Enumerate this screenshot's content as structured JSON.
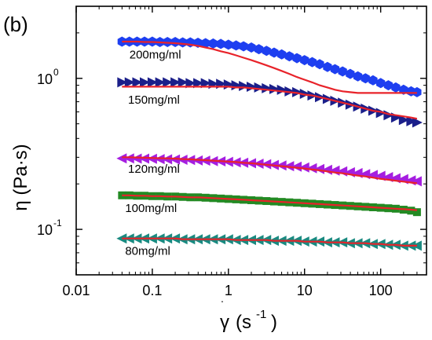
{
  "chart_data": {
    "type": "scatter",
    "panel_label": "(b)",
    "xlabel_symbol": "γ",
    "xlabel_units": "(s",
    "xlabel_exp": "-1",
    "xlabel_close": ")",
    "ylabel": "η (Pa·s)",
    "x_log": true,
    "y_log": true,
    "xlim": [
      0.01,
      400
    ],
    "ylim": [
      0.05,
      3.0
    ],
    "x_tick_values": [
      0.01,
      0.1,
      1,
      10,
      100
    ],
    "x_tick_labels": [
      "0.01",
      "0.1",
      "1",
      "10",
      "100"
    ],
    "y_tick_values": [
      0.1,
      1
    ],
    "y_tick_labels": [
      {
        "base": "10",
        "exp": "-1"
      },
      {
        "base": "10",
        "exp": "0"
      }
    ],
    "grid": false,
    "fit_color": "#e8232a",
    "series": [
      {
        "name": "200mg/ml",
        "marker": "hexagon",
        "color": "#1e3ff0",
        "x": [
          0.04,
          0.05,
          0.063,
          0.079,
          0.1,
          0.126,
          0.158,
          0.2,
          0.251,
          0.316,
          0.398,
          0.5,
          0.631,
          0.794,
          1.0,
          1.26,
          1.58,
          2.0,
          2.51,
          3.16,
          3.98,
          5.01,
          6.31,
          7.94,
          10,
          12.6,
          15.8,
          20,
          25.1,
          31.6,
          39.8,
          50.1,
          63.1,
          79.4,
          100,
          126,
          158,
          200,
          251,
          300
        ],
        "y": [
          1.75,
          1.75,
          1.75,
          1.75,
          1.75,
          1.74,
          1.74,
          1.74,
          1.73,
          1.73,
          1.72,
          1.71,
          1.7,
          1.69,
          1.67,
          1.65,
          1.63,
          1.6,
          1.56,
          1.52,
          1.48,
          1.44,
          1.4,
          1.36,
          1.32,
          1.28,
          1.24,
          1.19,
          1.15,
          1.11,
          1.07,
          1.03,
          1.0,
          0.97,
          0.93,
          0.9,
          0.87,
          0.84,
          0.82,
          0.81
        ],
        "fit_y": [
          1.75,
          1.75,
          1.75,
          1.74,
          1.74,
          1.73,
          1.72,
          1.71,
          1.69,
          1.67,
          1.64,
          1.6,
          1.56,
          1.51,
          1.47,
          1.42,
          1.37,
          1.32,
          1.27,
          1.22,
          1.17,
          1.12,
          1.07,
          1.02,
          0.98,
          0.94,
          0.9,
          0.87,
          0.84,
          0.82,
          0.81,
          0.8,
          0.8,
          0.8,
          0.8,
          0.8,
          0.8,
          0.8,
          0.8,
          0.8
        ],
        "label_x": 0.05,
        "label_y": 1.35
      },
      {
        "name": "150mg/ml",
        "marker": "triangle-right",
        "color": "#1b1f8a",
        "x": [
          0.04,
          0.05,
          0.063,
          0.079,
          0.1,
          0.126,
          0.158,
          0.2,
          0.251,
          0.316,
          0.398,
          0.5,
          0.631,
          0.794,
          1.0,
          1.26,
          1.58,
          2.0,
          2.51,
          3.16,
          3.98,
          5.01,
          6.31,
          7.94,
          10,
          12.6,
          15.8,
          20,
          25.1,
          31.6,
          39.8,
          50.1,
          63.1,
          79.4,
          100,
          126,
          158,
          200,
          251,
          300
        ],
        "y": [
          0.94,
          0.94,
          0.94,
          0.94,
          0.94,
          0.94,
          0.94,
          0.94,
          0.94,
          0.93,
          0.93,
          0.93,
          0.92,
          0.92,
          0.91,
          0.9,
          0.89,
          0.88,
          0.87,
          0.86,
          0.85,
          0.84,
          0.82,
          0.81,
          0.79,
          0.77,
          0.75,
          0.73,
          0.71,
          0.69,
          0.67,
          0.65,
          0.63,
          0.61,
          0.59,
          0.57,
          0.55,
          0.53,
          0.52,
          0.51
        ],
        "fit_y": [
          0.88,
          0.88,
          0.88,
          0.88,
          0.88,
          0.88,
          0.88,
          0.88,
          0.88,
          0.88,
          0.88,
          0.88,
          0.88,
          0.88,
          0.88,
          0.87,
          0.87,
          0.86,
          0.85,
          0.84,
          0.83,
          0.82,
          0.81,
          0.8,
          0.78,
          0.77,
          0.75,
          0.73,
          0.71,
          0.69,
          0.67,
          0.65,
          0.63,
          0.61,
          0.6,
          0.58,
          0.57,
          0.56,
          0.55,
          0.54
        ],
        "label_x": 0.048,
        "label_y": 0.68
      },
      {
        "name": "120mg/ml",
        "marker": "triangle-left",
        "color": "#a51ee0",
        "x": [
          0.04,
          0.05,
          0.063,
          0.079,
          0.1,
          0.126,
          0.158,
          0.2,
          0.251,
          0.316,
          0.398,
          0.5,
          0.631,
          0.794,
          1.0,
          1.26,
          1.58,
          2.0,
          2.51,
          3.16,
          3.98,
          5.01,
          6.31,
          7.94,
          10,
          12.6,
          15.8,
          20,
          25.1,
          31.6,
          39.8,
          50.1,
          63.1,
          79.4,
          100,
          126,
          158,
          200,
          251,
          300
        ],
        "y": [
          0.295,
          0.295,
          0.294,
          0.294,
          0.293,
          0.292,
          0.291,
          0.29,
          0.289,
          0.288,
          0.286,
          0.285,
          0.283,
          0.282,
          0.28,
          0.278,
          0.276,
          0.274,
          0.272,
          0.27,
          0.267,
          0.265,
          0.262,
          0.26,
          0.257,
          0.254,
          0.251,
          0.248,
          0.245,
          0.242,
          0.239,
          0.236,
          0.232,
          0.229,
          0.226,
          0.222,
          0.218,
          0.215,
          0.211,
          0.208
        ],
        "fit_y": [
          0.3,
          0.3,
          0.299,
          0.298,
          0.297,
          0.296,
          0.295,
          0.294,
          0.292,
          0.291,
          0.289,
          0.287,
          0.285,
          0.283,
          0.281,
          0.279,
          0.276,
          0.274,
          0.271,
          0.268,
          0.265,
          0.262,
          0.259,
          0.256,
          0.253,
          0.249,
          0.246,
          0.242,
          0.238,
          0.235,
          0.231,
          0.227,
          0.224,
          0.22,
          0.216,
          0.213,
          0.21,
          0.207,
          0.204,
          0.202
        ],
        "label_x": 0.048,
        "label_y": 0.237
      },
      {
        "name": "100mg/ml",
        "marker": "square",
        "color": "#238a23",
        "x": [
          0.04,
          0.05,
          0.063,
          0.079,
          0.1,
          0.126,
          0.158,
          0.2,
          0.251,
          0.316,
          0.398,
          0.5,
          0.631,
          0.794,
          1.0,
          1.26,
          1.58,
          2.0,
          2.51,
          3.16,
          3.98,
          5.01,
          6.31,
          7.94,
          10,
          12.6,
          15.8,
          20,
          25.1,
          31.6,
          39.8,
          50.1,
          63.1,
          79.4,
          100,
          126,
          158,
          200,
          251,
          300
        ],
        "y": [
          0.168,
          0.168,
          0.167,
          0.167,
          0.166,
          0.166,
          0.165,
          0.165,
          0.164,
          0.163,
          0.163,
          0.162,
          0.161,
          0.16,
          0.159,
          0.158,
          0.157,
          0.156,
          0.155,
          0.154,
          0.153,
          0.152,
          0.151,
          0.15,
          0.149,
          0.148,
          0.147,
          0.146,
          0.145,
          0.144,
          0.143,
          0.142,
          0.141,
          0.14,
          0.139,
          0.138,
          0.137,
          0.135,
          0.133,
          0.13
        ],
        "fit_y": [
          0.168,
          0.168,
          0.167,
          0.167,
          0.166,
          0.166,
          0.165,
          0.165,
          0.164,
          0.163,
          0.163,
          0.162,
          0.161,
          0.16,
          0.159,
          0.158,
          0.157,
          0.156,
          0.155,
          0.154,
          0.153,
          0.152,
          0.151,
          0.15,
          0.149,
          0.148,
          0.147,
          0.146,
          0.145,
          0.144,
          0.143,
          0.142,
          0.141,
          0.14,
          0.139,
          0.138,
          0.137,
          0.136,
          0.135,
          0.134
        ],
        "label_x": 0.044,
        "label_y": 0.13
      },
      {
        "name": "80mg/ml",
        "marker": "triangle-left",
        "color": "#1a8a80",
        "x": [
          0.04,
          0.05,
          0.063,
          0.079,
          0.1,
          0.126,
          0.158,
          0.2,
          0.251,
          0.316,
          0.398,
          0.5,
          0.631,
          0.794,
          1.0,
          1.26,
          1.58,
          2.0,
          2.51,
          3.16,
          3.98,
          5.01,
          6.31,
          7.94,
          10,
          12.6,
          15.8,
          20,
          25.1,
          31.6,
          39.8,
          50.1,
          63.1,
          79.4,
          100,
          126,
          158,
          200,
          251,
          300
        ],
        "y": [
          0.087,
          0.087,
          0.087,
          0.087,
          0.087,
          0.087,
          0.087,
          0.087,
          0.086,
          0.086,
          0.086,
          0.086,
          0.086,
          0.086,
          0.086,
          0.085,
          0.085,
          0.085,
          0.085,
          0.085,
          0.084,
          0.084,
          0.084,
          0.084,
          0.083,
          0.083,
          0.083,
          0.082,
          0.082,
          0.082,
          0.081,
          0.081,
          0.081,
          0.08,
          0.08,
          0.079,
          0.079,
          0.078,
          0.078,
          0.078
        ],
        "fit_y": [
          0.087,
          0.087,
          0.087,
          0.087,
          0.087,
          0.087,
          0.087,
          0.087,
          0.086,
          0.086,
          0.086,
          0.086,
          0.086,
          0.086,
          0.086,
          0.085,
          0.085,
          0.085,
          0.085,
          0.085,
          0.084,
          0.084,
          0.084,
          0.084,
          0.083,
          0.083,
          0.083,
          0.082,
          0.082,
          0.082,
          0.081,
          0.081,
          0.081,
          0.08,
          0.08,
          0.079,
          0.079,
          0.078,
          0.078,
          0.078
        ],
        "label_x": 0.044,
        "label_y": 0.068
      }
    ]
  }
}
